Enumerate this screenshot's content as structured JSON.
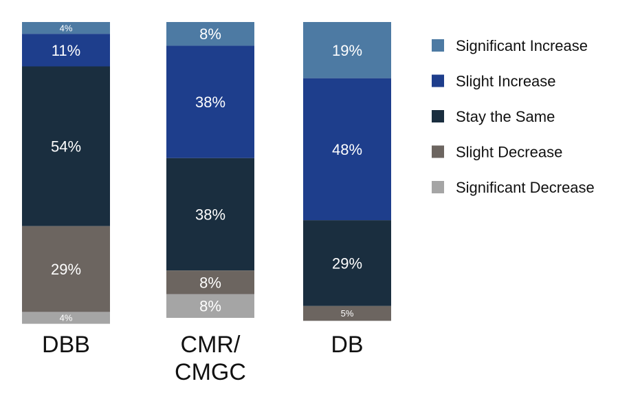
{
  "chart_data": {
    "type": "bar",
    "stacked": true,
    "categories": [
      "DBB",
      "CMR/\nCMGC",
      "DB"
    ],
    "series": [
      {
        "name": "Significant Increase",
        "color": "#4d7aa3",
        "values": [
          4,
          8,
          19
        ]
      },
      {
        "name": "Slight Increase",
        "color": "#1e3e8c",
        "values": [
          11,
          38,
          48
        ]
      },
      {
        "name": "Stay the Same",
        "color": "#1a2e3f",
        "values": [
          54,
          38,
          29
        ]
      },
      {
        "name": "Slight Decrease",
        "color": "#6c6560",
        "values": [
          29,
          8,
          5
        ]
      },
      {
        "name": "Significant Decrease",
        "color": "#a5a5a5",
        "values": [
          4,
          8,
          0
        ]
      }
    ],
    "ylim": [
      0,
      100
    ],
    "legend_position": "right",
    "grid": false
  }
}
